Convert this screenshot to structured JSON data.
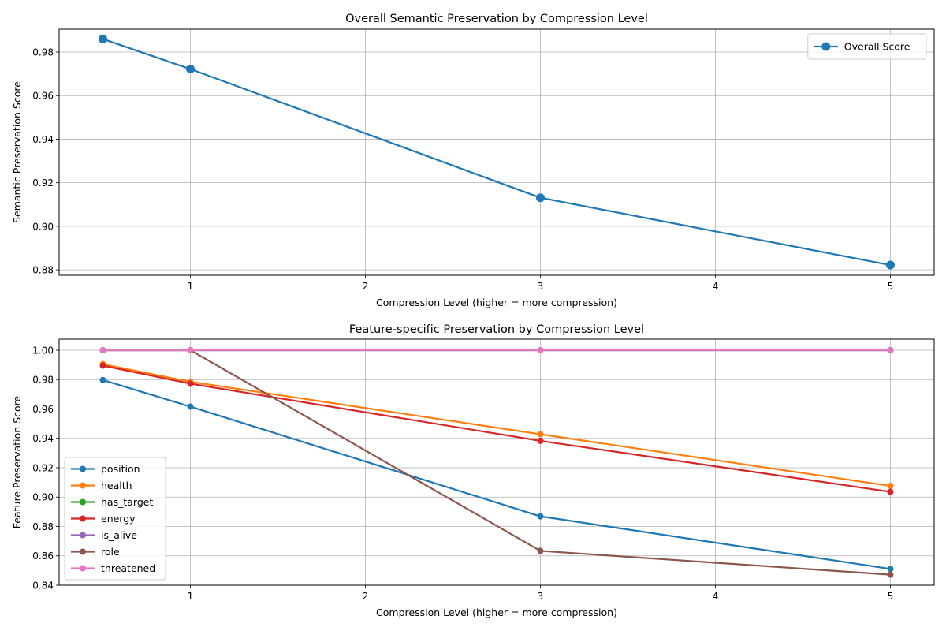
{
  "chart_data": [
    {
      "type": "line",
      "title": "Overall Semantic Preservation by Compression Level",
      "xlabel": "Compression Level (higher = more compression)",
      "ylabel": "Semantic Preservation Score",
      "xlim": [
        0.25,
        5.25
      ],
      "ylim": [
        0.8775,
        0.9905
      ],
      "xticks": [
        1,
        2,
        3,
        4,
        5
      ],
      "yticks": [
        0.88,
        0.9,
        0.92,
        0.94,
        0.96,
        0.98
      ],
      "ytick_labels": [
        "0.88",
        "0.90",
        "0.92",
        "0.94",
        "0.96",
        "0.98"
      ],
      "grid": true,
      "legend": "upper right",
      "x": [
        0.5,
        1,
        3,
        5
      ],
      "series": [
        {
          "name": "Overall Score",
          "color": "#1f77b4",
          "values": [
            0.986,
            0.9722,
            0.9131,
            0.8822
          ]
        }
      ]
    },
    {
      "type": "line",
      "title": "Feature-specific Preservation by Compression Level",
      "xlabel": "Compression Level (higher = more compression)",
      "ylabel": "Feature Preservation Score",
      "xlim": [
        0.25,
        5.25
      ],
      "ylim": [
        0.84,
        1.0075
      ],
      "xticks": [
        1,
        2,
        3,
        4,
        5
      ],
      "yticks": [
        0.84,
        0.86,
        0.88,
        0.9,
        0.92,
        0.94,
        0.96,
        0.98,
        1.0
      ],
      "ytick_labels": [
        "0.84",
        "0.86",
        "0.88",
        "0.90",
        "0.92",
        "0.94",
        "0.96",
        "0.98",
        "1.00"
      ],
      "grid": true,
      "legend": "lower left",
      "x": [
        0.5,
        1,
        3,
        5
      ],
      "series": [
        {
          "name": "position",
          "color": "#1f77b4",
          "values": [
            0.9797,
            0.9616,
            0.8869,
            0.8511
          ]
        },
        {
          "name": "health",
          "color": "#ff7f0e",
          "values": [
            0.9905,
            0.9785,
            0.9428,
            0.9076
          ]
        },
        {
          "name": "has_target",
          "color": "#2ca02c",
          "values": [
            1.0,
            1.0,
            1.0,
            1.0
          ]
        },
        {
          "name": "energy",
          "color": "#d62728",
          "values": [
            0.9895,
            0.9772,
            0.9383,
            0.9036
          ]
        },
        {
          "name": "is_alive",
          "color": "#9467bd",
          "values": [
            1.0,
            1.0,
            1.0,
            1.0
          ]
        },
        {
          "name": "role",
          "color": "#8c564b",
          "values": [
            1.0,
            1.0,
            0.8634,
            0.8472
          ]
        },
        {
          "name": "threatened",
          "color": "#e377c2",
          "values": [
            1.0,
            1.0,
            1.0,
            1.0
          ]
        }
      ]
    }
  ]
}
